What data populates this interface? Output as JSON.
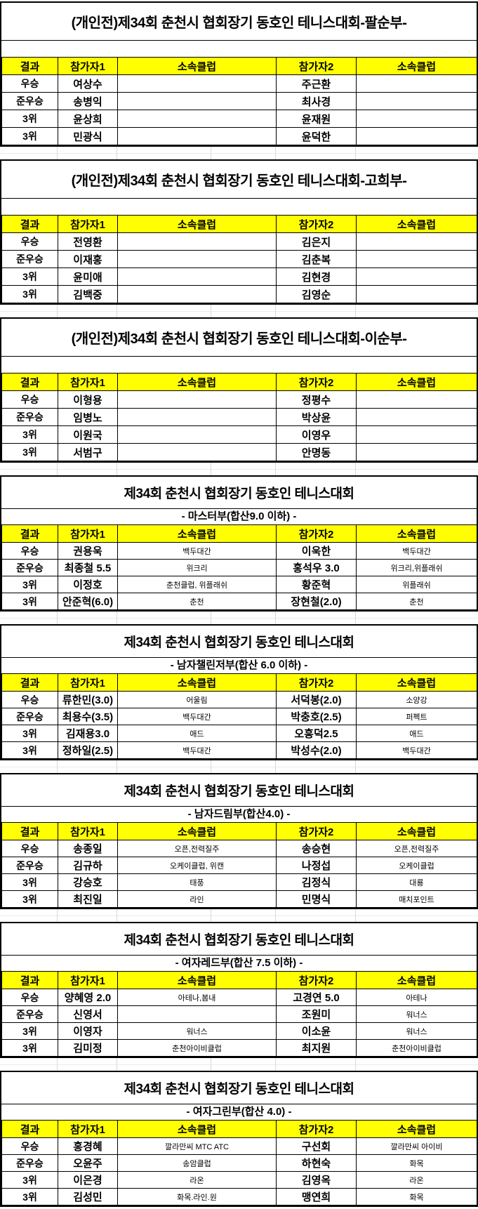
{
  "colors": {
    "header_bg": "#ffff00",
    "border": "#000000",
    "grid_gray": "#d9d9d9"
  },
  "header": {
    "result": "결과",
    "p1": "참가자1",
    "c1": "소속클럽",
    "p2": "참가자2",
    "c2": "소속클럽"
  },
  "sections": [
    {
      "title": "(개인전)제34회 춘천시 협회장기 동호인 테니스대회-팔순부-",
      "rows": [
        {
          "result": "우승",
          "p1": "여상수",
          "c1": "",
          "p2": "주근환",
          "c2": ""
        },
        {
          "result": "준우승",
          "p1": "송병익",
          "c1": "",
          "p2": "최사경",
          "c2": ""
        },
        {
          "result": "3위",
          "p1": "윤상희",
          "c1": "",
          "p2": "윤재원",
          "c2": ""
        },
        {
          "result": "3위",
          "p1": "민광식",
          "c1": "",
          "p2": "윤덕한",
          "c2": ""
        }
      ]
    },
    {
      "title": "(개인전)제34회 춘천시 협회장기 동호인 테니스대회-고희부-",
      "rows": [
        {
          "result": "우승",
          "p1": "전영환",
          "c1": "",
          "p2": "김은지",
          "c2": ""
        },
        {
          "result": "준우승",
          "p1": "이재홍",
          "c1": "",
          "p2": "김춘복",
          "c2": ""
        },
        {
          "result": "3위",
          "p1": "윤미애",
          "c1": "",
          "p2": "김현경",
          "c2": ""
        },
        {
          "result": "3위",
          "p1": "김백중",
          "c1": "",
          "p2": "김영순",
          "c2": ""
        }
      ]
    },
    {
      "title": "(개인전)제34회 춘천시 협회장기 동호인 테니스대회-이순부-",
      "rows": [
        {
          "result": "우승",
          "p1": "이형용",
          "c1": "",
          "p2": "정평수",
          "c2": ""
        },
        {
          "result": "준우승",
          "p1": "임병노",
          "c1": "",
          "p2": "박상윤",
          "c2": ""
        },
        {
          "result": "3위",
          "p1": "이원국",
          "c1": "",
          "p2": "이영우",
          "c2": ""
        },
        {
          "result": "3위",
          "p1": "서범구",
          "c1": "",
          "p2": "안명동",
          "c2": ""
        }
      ]
    },
    {
      "title": "제34회 춘천시 협회장기 동호인 테니스대회",
      "subtitle": "- 마스터부(합산9.0 이하) -",
      "rows": [
        {
          "result": "우승",
          "p1": "권용욱",
          "c1": "백두대간",
          "p2": "이욱한",
          "c2": "백두대간"
        },
        {
          "result": "준우승",
          "p1": "최종철 5.5",
          "c1": "위크리",
          "p2": "홍석우 3.0",
          "c2": "위크리,위플래쉬"
        },
        {
          "result": "3위",
          "p1": "이정호",
          "c1": "춘천클럽, 위플래쉬",
          "p2": "황준혁",
          "c2": "위플래쉬"
        },
        {
          "result": "3위",
          "p1": "안준혁(6.0)",
          "c1": "춘천",
          "p2": "장현철(2.0)",
          "c2": "춘천"
        }
      ]
    },
    {
      "title": "제34회 춘천시 협회장기 동호인 테니스대회",
      "subtitle": "- 남자챌린저부(합산 6.0 이하) -",
      "rows": [
        {
          "result": "우승",
          "p1": "류한민(3.0)",
          "c1": "어울림",
          "p2": "서덕봉(2.0)",
          "c2": "소양강"
        },
        {
          "result": "준우승",
          "p1": "최용수(3.5)",
          "c1": "백두대간",
          "p2": "박충호(2.5)",
          "c2": "퍼펙트"
        },
        {
          "result": "3위",
          "p1": "김재용3.0",
          "c1": "애드",
          "p2": "오흥덕2.5",
          "c2": "애드"
        },
        {
          "result": "3위",
          "p1": "정하일(2.5)",
          "c1": "백두대간",
          "p2": "박성수(2.0)",
          "c2": "백두대간"
        }
      ]
    },
    {
      "title": "제34회 춘천시 협회장기 동호인 테니스대회",
      "subtitle": "- 남자드림부(합산4.0) -",
      "rows": [
        {
          "result": "우승",
          "p1": "송종일",
          "c1": "오픈,전력질주",
          "p2": "송승현",
          "c2": "오픈,전력질주"
        },
        {
          "result": "준우승",
          "p1": "김규하",
          "c1": "오케이클럽, 위캔",
          "p2": "나정섭",
          "c2": "오케이클럽"
        },
        {
          "result": "3위",
          "p1": "강승호",
          "c1": "태풍",
          "p2": "김정식",
          "c2": "대룡"
        },
        {
          "result": "3위",
          "p1": "최진일",
          "c1": "라인",
          "p2": "민명식",
          "c2": "매치포인트"
        }
      ]
    },
    {
      "title": "제34회 춘천시 협회장기 동호인 테니스대회",
      "subtitle": "- 여자레드부(합산 7.5 이하) -",
      "rows": [
        {
          "result": "우승",
          "p1": "양혜영 2.0",
          "c1": "아테나,봄내",
          "p2": "고경연 5.0",
          "c2": "아테나"
        },
        {
          "result": "준우승",
          "p1": "신영서",
          "c1": "",
          "p2": "조원미",
          "c2": "워너스"
        },
        {
          "result": "3위",
          "p1": "이영자",
          "c1": "워너스",
          "p2": "이소윤",
          "c2": "워너스"
        },
        {
          "result": "3위",
          "p1": "김미정",
          "c1": "춘천아이비클럽",
          "p2": "최지원",
          "c2": "춘천아이비클럽"
        }
      ]
    },
    {
      "title": "제34회 춘천시 협회장기 동호인 테니스대회",
      "subtitle": "- 여자그린부(합산 4.0) -",
      "rows": [
        {
          "result": "우승",
          "p1": "홍경혜",
          "c1": "깔라만씨 MTC ATC",
          "p2": "구선회",
          "c2": "깔라만씨 아이비"
        },
        {
          "result": "준우승",
          "p1": "오윤주",
          "c1": "송암클럽",
          "p2": "하현숙",
          "c2": "화목"
        },
        {
          "result": "3위",
          "p1": "이은경",
          "c1": "라온",
          "p2": "김영옥",
          "c2": "라온"
        },
        {
          "result": "3위",
          "p1": "김성민",
          "c1": "화목.라인.원",
          "p2": "맹연희",
          "c2": "화목"
        }
      ]
    }
  ]
}
